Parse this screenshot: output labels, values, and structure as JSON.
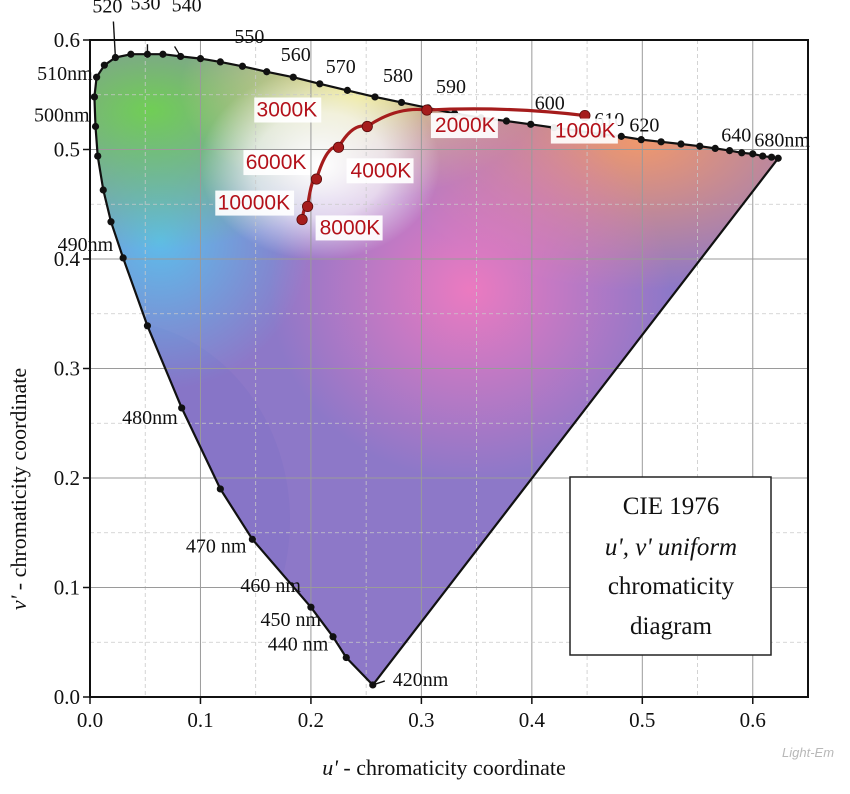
{
  "chart_data": {
    "type": "scatter",
    "title_lines": [
      "CIE 1976",
      "u', v' uniform",
      "chromaticity",
      "diagram"
    ],
    "xlabel": {
      "symbol": "u'",
      "text": " - chromaticity coordinate"
    },
    "ylabel": {
      "symbol": "v'",
      "text": " - chromaticity  coordinate"
    },
    "xlim": [
      0.0,
      0.65
    ],
    "ylim": [
      0.0,
      0.6
    ],
    "x_ticks": [
      "0.0",
      "0.1",
      "0.2",
      "0.3",
      "0.4",
      "0.5",
      "0.6"
    ],
    "y_ticks": [
      "0.0",
      "0.1",
      "0.2",
      "0.3",
      "0.4",
      "0.5",
      "0.6"
    ],
    "grid": true,
    "spectral_locus": {
      "name": "spectral locus",
      "points": [
        [
          0.256,
          0.011
        ],
        [
          0.232,
          0.036
        ],
        [
          0.22,
          0.055
        ],
        [
          0.2,
          0.082
        ],
        [
          0.147,
          0.144
        ],
        [
          0.118,
          0.19
        ],
        [
          0.083,
          0.264
        ],
        [
          0.052,
          0.339
        ],
        [
          0.03,
          0.401
        ],
        [
          0.019,
          0.434
        ],
        [
          0.012,
          0.463
        ],
        [
          0.007,
          0.494
        ],
        [
          0.005,
          0.521
        ],
        [
          0.004,
          0.548
        ],
        [
          0.006,
          0.566
        ],
        [
          0.013,
          0.577
        ],
        [
          0.023,
          0.584
        ],
        [
          0.037,
          0.587
        ],
        [
          0.052,
          0.587
        ],
        [
          0.066,
          0.587
        ],
        [
          0.082,
          0.585
        ],
        [
          0.1,
          0.583
        ],
        [
          0.118,
          0.58
        ],
        [
          0.138,
          0.576
        ],
        [
          0.16,
          0.571
        ],
        [
          0.184,
          0.566
        ],
        [
          0.208,
          0.56
        ],
        [
          0.233,
          0.554
        ],
        [
          0.258,
          0.548
        ],
        [
          0.282,
          0.543
        ],
        [
          0.306,
          0.538
        ],
        [
          0.33,
          0.533
        ],
        [
          0.354,
          0.529
        ],
        [
          0.377,
          0.526
        ],
        [
          0.399,
          0.523
        ],
        [
          0.42,
          0.52
        ],
        [
          0.442,
          0.517
        ],
        [
          0.462,
          0.514
        ],
        [
          0.481,
          0.512
        ],
        [
          0.499,
          0.509
        ],
        [
          0.517,
          0.507
        ],
        [
          0.535,
          0.505
        ],
        [
          0.552,
          0.503
        ],
        [
          0.566,
          0.501
        ],
        [
          0.579,
          0.499
        ],
        [
          0.59,
          0.497
        ],
        [
          0.6,
          0.496
        ],
        [
          0.609,
          0.494
        ],
        [
          0.617,
          0.493
        ],
        [
          0.623,
          0.492
        ]
      ]
    },
    "wavelength_labels": [
      {
        "text": "420nm",
        "u": 0.256,
        "v": 0.011
      },
      {
        "text": "440 nm",
        "u": 0.232,
        "v": 0.036
      },
      {
        "text": "450 nm",
        "u": 0.22,
        "v": 0.055
      },
      {
        "text": "460 nm",
        "u": 0.2,
        "v": 0.082
      },
      {
        "text": "470 nm",
        "u": 0.147,
        "v": 0.144
      },
      {
        "text": "480nm",
        "u": 0.083,
        "v": 0.264
      },
      {
        "text": "490nm",
        "u": 0.03,
        "v": 0.401
      },
      {
        "text": "500nm",
        "u": 0.005,
        "v": 0.521
      },
      {
        "text": "510nm",
        "u": 0.006,
        "v": 0.566
      },
      {
        "text": "520",
        "u": 0.023,
        "v": 0.584
      },
      {
        "text": "530",
        "u": 0.052,
        "v": 0.587
      },
      {
        "text": "540",
        "u": 0.082,
        "v": 0.585
      },
      {
        "text": "550",
        "u": 0.118,
        "v": 0.58
      },
      {
        "text": "560",
        "u": 0.16,
        "v": 0.571
      },
      {
        "text": "570",
        "u": 0.208,
        "v": 0.56
      },
      {
        "text": "580",
        "u": 0.258,
        "v": 0.548
      },
      {
        "text": "590",
        "u": 0.306,
        "v": 0.538
      },
      {
        "text": "600",
        "u": 0.399,
        "v": 0.523
      },
      {
        "text": "610",
        "u": 0.442,
        "v": 0.517
      },
      {
        "text": "620",
        "u": 0.481,
        "v": 0.512
      },
      {
        "text": "640",
        "u": 0.566,
        "v": 0.501
      },
      {
        "text": "680nm",
        "u": 0.623,
        "v": 0.492
      }
    ],
    "planckian_locus": {
      "name": "Planckian locus",
      "color": "#a51c1c",
      "points": [
        {
          "label": "1000K",
          "u": 0.448,
          "v": 0.531
        },
        {
          "label": "2000K",
          "u": 0.305,
          "v": 0.536
        },
        {
          "label": "3000K",
          "u": 0.251,
          "v": 0.521
        },
        {
          "label": "4000K",
          "u": 0.225,
          "v": 0.502
        },
        {
          "label": "6000K",
          "u": 0.205,
          "v": 0.473
        },
        {
          "label": "8000K",
          "u": 0.197,
          "v": 0.448
        },
        {
          "label": "10000K",
          "u": 0.192,
          "v": 0.436
        }
      ]
    },
    "watermark": "Light-Em"
  }
}
